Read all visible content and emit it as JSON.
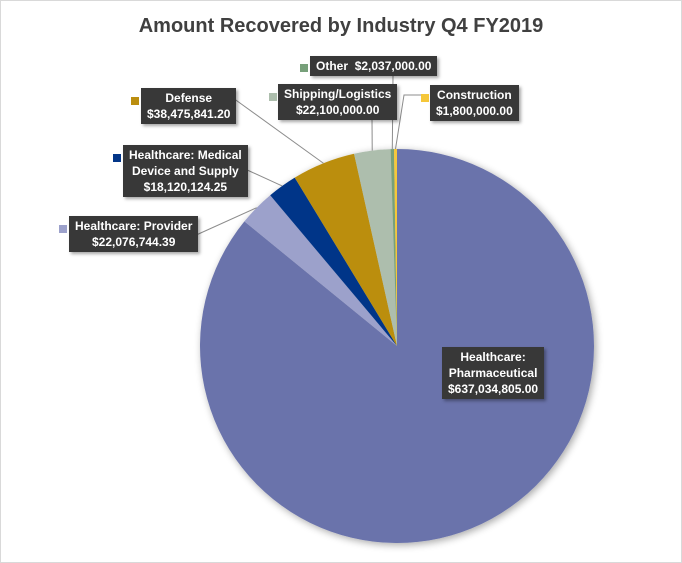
{
  "chart_data": {
    "type": "pie",
    "title": "Amount Recovered by Industry Q4 FY2019",
    "start_angle": "12 o'clock, clockwise",
    "legend": "none (data labels with legend keys)",
    "slices": [
      {
        "label": "Healthcare: Pharmaceutical",
        "label_lines": [
          "Healthcare:",
          "Pharmaceutical"
        ],
        "value": 637034805.0,
        "value_text": "$637,034,805.00",
        "color": "#6A73AB"
      },
      {
        "label": "Healthcare: Provider",
        "label_lines": [
          "Healthcare: Provider"
        ],
        "value": 22076744.39,
        "value_text": "$22,076,744.39",
        "color": "#9CA1CB"
      },
      {
        "label": "Healthcare: Medical Device and Supply",
        "label_lines": [
          "Healthcare: Medical",
          "Device and Supply"
        ],
        "value": 18120124.25,
        "value_text": "$18,120,124.25",
        "color": "#033688"
      },
      {
        "label": "Defense",
        "label_lines": [
          "Defense"
        ],
        "value": 38475841.2,
        "value_text": "$38,475,841.20",
        "color": "#BB8E0F"
      },
      {
        "label": "Shipping/Logistics",
        "label_lines": [
          "Shipping/Logistics"
        ],
        "value": 22100000.0,
        "value_text": "$22,100,000.00",
        "color": "#ADBEAD"
      },
      {
        "label": "Other",
        "label_lines": [
          "Other"
        ],
        "value": 2037000.0,
        "value_text": "$2,037,000.00",
        "color": "#77A07A"
      },
      {
        "label": "Construction",
        "label_lines": [
          "Construction"
        ],
        "value": 1800000.0,
        "value_text": "$1,800,000.00",
        "color": "#F5C73A"
      }
    ]
  }
}
